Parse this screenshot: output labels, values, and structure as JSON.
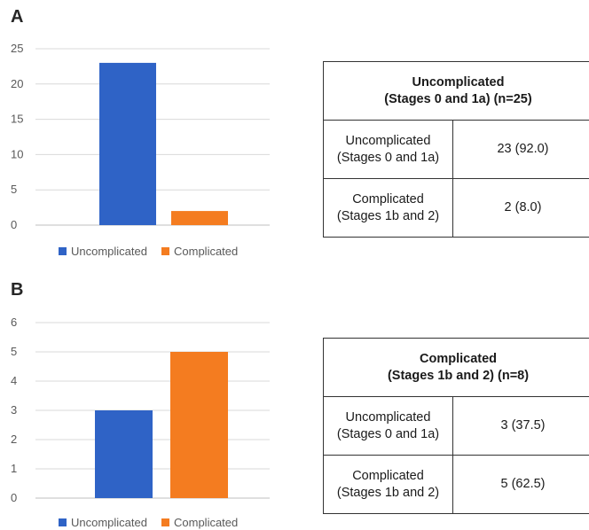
{
  "panels": [
    {
      "letter": "A",
      "legend": [
        {
          "label": "Uncomplicated",
          "color": "#2f63c6"
        },
        {
          "label": "Complicated",
          "color": "#f47c20"
        }
      ],
      "table": {
        "header": [
          "Uncomplicated",
          "(Stages 0 and 1a) (n=25)"
        ],
        "rows": [
          {
            "label": [
              "Uncomplicated",
              "(Stages 0 and 1a)"
            ],
            "value": "23 (92.0)"
          },
          {
            "label": [
              "Complicated",
              "(Stages 1b and 2)"
            ],
            "value": "2 (8.0)"
          }
        ]
      }
    },
    {
      "letter": "B",
      "legend": [
        {
          "label": "Uncomplicated",
          "color": "#2f63c6"
        },
        {
          "label": "Complicated",
          "color": "#f47c20"
        }
      ],
      "table": {
        "header": [
          "Complicated",
          "(Stages 1b and 2) (n=8)"
        ],
        "rows": [
          {
            "label": [
              "Uncomplicated",
              "(Stages 0 and 1a)"
            ],
            "value": "3 (37.5)"
          },
          {
            "label": [
              "Complicated",
              "(Stages 1b and 2)"
            ],
            "value": "5 (62.5)"
          }
        ]
      }
    }
  ],
  "chart_data": [
    {
      "type": "bar",
      "categories": [
        "Uncomplicated",
        "Complicated"
      ],
      "values": [
        23,
        2
      ],
      "colors": [
        "#2f63c6",
        "#f47c20"
      ],
      "ylim": [
        0,
        25
      ],
      "yticks": [
        "0",
        "5",
        "10",
        "15",
        "20",
        "25"
      ],
      "grid": true,
      "legend": "bottom"
    },
    {
      "type": "bar",
      "categories": [
        "Uncomplicated",
        "Complicated"
      ],
      "values": [
        3,
        5
      ],
      "colors": [
        "#2f63c6",
        "#f47c20"
      ],
      "ylim": [
        0,
        6
      ],
      "yticks": [
        "0",
        "1",
        "2",
        "3",
        "4",
        "5",
        "6"
      ],
      "grid": true,
      "legend": "bottom"
    }
  ]
}
